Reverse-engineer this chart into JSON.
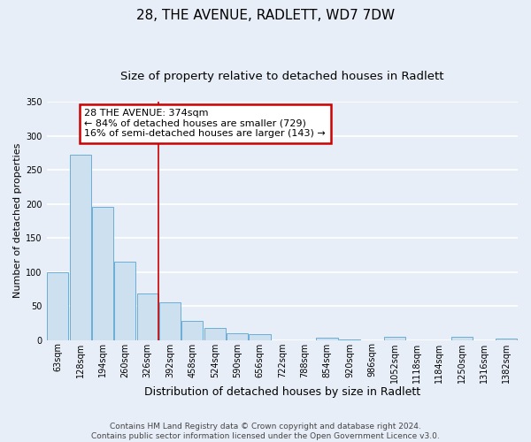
{
  "title": "28, THE AVENUE, RADLETT, WD7 7DW",
  "subtitle": "Size of property relative to detached houses in Radlett",
  "xlabel": "Distribution of detached houses by size in Radlett",
  "ylabel": "Number of detached properties",
  "bar_labels": [
    "63sqm",
    "128sqm",
    "194sqm",
    "260sqm",
    "326sqm",
    "392sqm",
    "458sqm",
    "524sqm",
    "590sqm",
    "656sqm",
    "722sqm",
    "788sqm",
    "854sqm",
    "920sqm",
    "986sqm",
    "1052sqm",
    "1118sqm",
    "1184sqm",
    "1250sqm",
    "1316sqm",
    "1382sqm"
  ],
  "bar_values": [
    100,
    272,
    195,
    115,
    68,
    55,
    28,
    17,
    10,
    8,
    0,
    0,
    3,
    1,
    0,
    5,
    0,
    0,
    5,
    0,
    2
  ],
  "bar_color": "#cde0f0",
  "bar_edge_color": "#6aaed6",
  "vline_x": 4.5,
  "vline_color": "#cc0000",
  "annotation_text": "28 THE AVENUE: 374sqm\n← 84% of detached houses are smaller (729)\n16% of semi-detached houses are larger (143) →",
  "annotation_box_color": "#cc0000",
  "ylim": [
    0,
    350
  ],
  "yticks": [
    0,
    50,
    100,
    150,
    200,
    250,
    300,
    350
  ],
  "footer_line1": "Contains HM Land Registry data © Crown copyright and database right 2024.",
  "footer_line2": "Contains public sector information licensed under the Open Government Licence v3.0.",
  "background_color": "#e8eef8",
  "plot_background": "#e8eef8",
  "grid_color": "#ffffff",
  "title_fontsize": 11,
  "subtitle_fontsize": 9.5,
  "xlabel_fontsize": 9,
  "ylabel_fontsize": 8,
  "footer_fontsize": 6.5,
  "annotation_fontsize": 8,
  "tick_fontsize": 7
}
